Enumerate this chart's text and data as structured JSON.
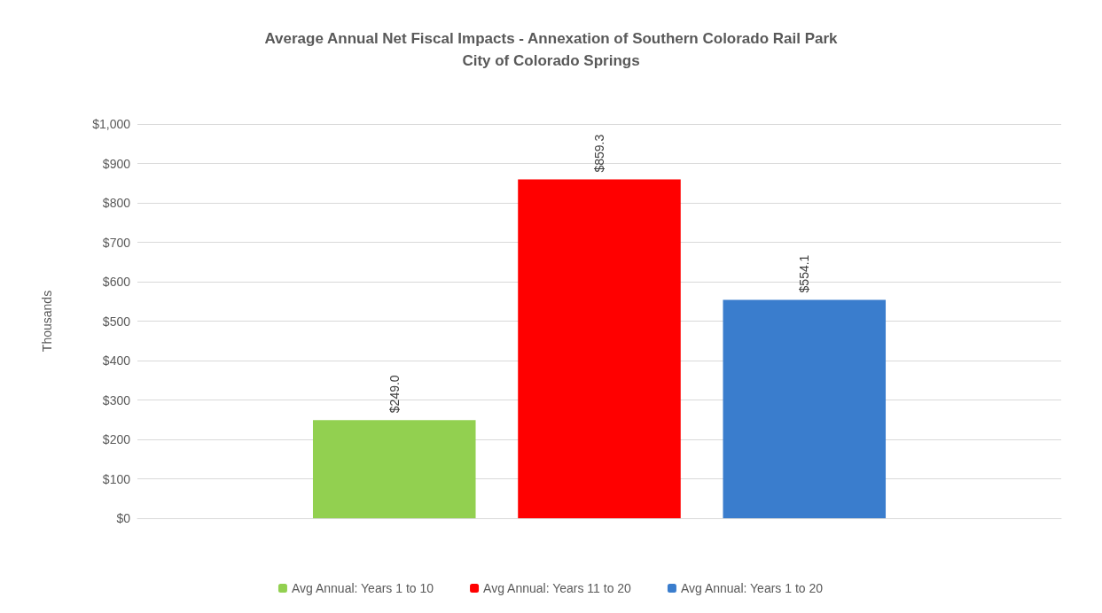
{
  "chart_data": {
    "type": "bar",
    "title": "Average Annual Net Fiscal Impacts - Annexation of Southern Colorado Rail Park",
    "subtitle": "City of Colorado Springs",
    "ylabel": "Thousands",
    "categories": [
      null
    ],
    "series": [
      {
        "name": "Avg Annual: Years 1 to 10",
        "color": "#92d050",
        "values": [
          249.0
        ],
        "value_labels": [
          "$249.0"
        ]
      },
      {
        "name": "Avg Annual: Years 11 to 20",
        "color": "#ff0000",
        "values": [
          859.3
        ],
        "value_labels": [
          "$859.3"
        ]
      },
      {
        "name": "Avg Annual: Years 1 to 20",
        "color": "#3a7dcd",
        "values": [
          554.1
        ],
        "value_labels": [
          "$554.1"
        ]
      }
    ],
    "ylim": [
      0,
      1000
    ],
    "yticks": [
      {
        "value": 0,
        "label": "$0"
      },
      {
        "value": 100,
        "label": "$100"
      },
      {
        "value": 200,
        "label": "$200"
      },
      {
        "value": 300,
        "label": "$300"
      },
      {
        "value": 400,
        "label": "$400"
      },
      {
        "value": 500,
        "label": "$500"
      },
      {
        "value": 600,
        "label": "$600"
      },
      {
        "value": 700,
        "label": "$700"
      },
      {
        "value": 800,
        "label": "$800"
      },
      {
        "value": 900,
        "label": "$900"
      },
      {
        "value": 1000,
        "label": "$1,000"
      }
    ],
    "grid": true,
    "legend": "bottom"
  }
}
